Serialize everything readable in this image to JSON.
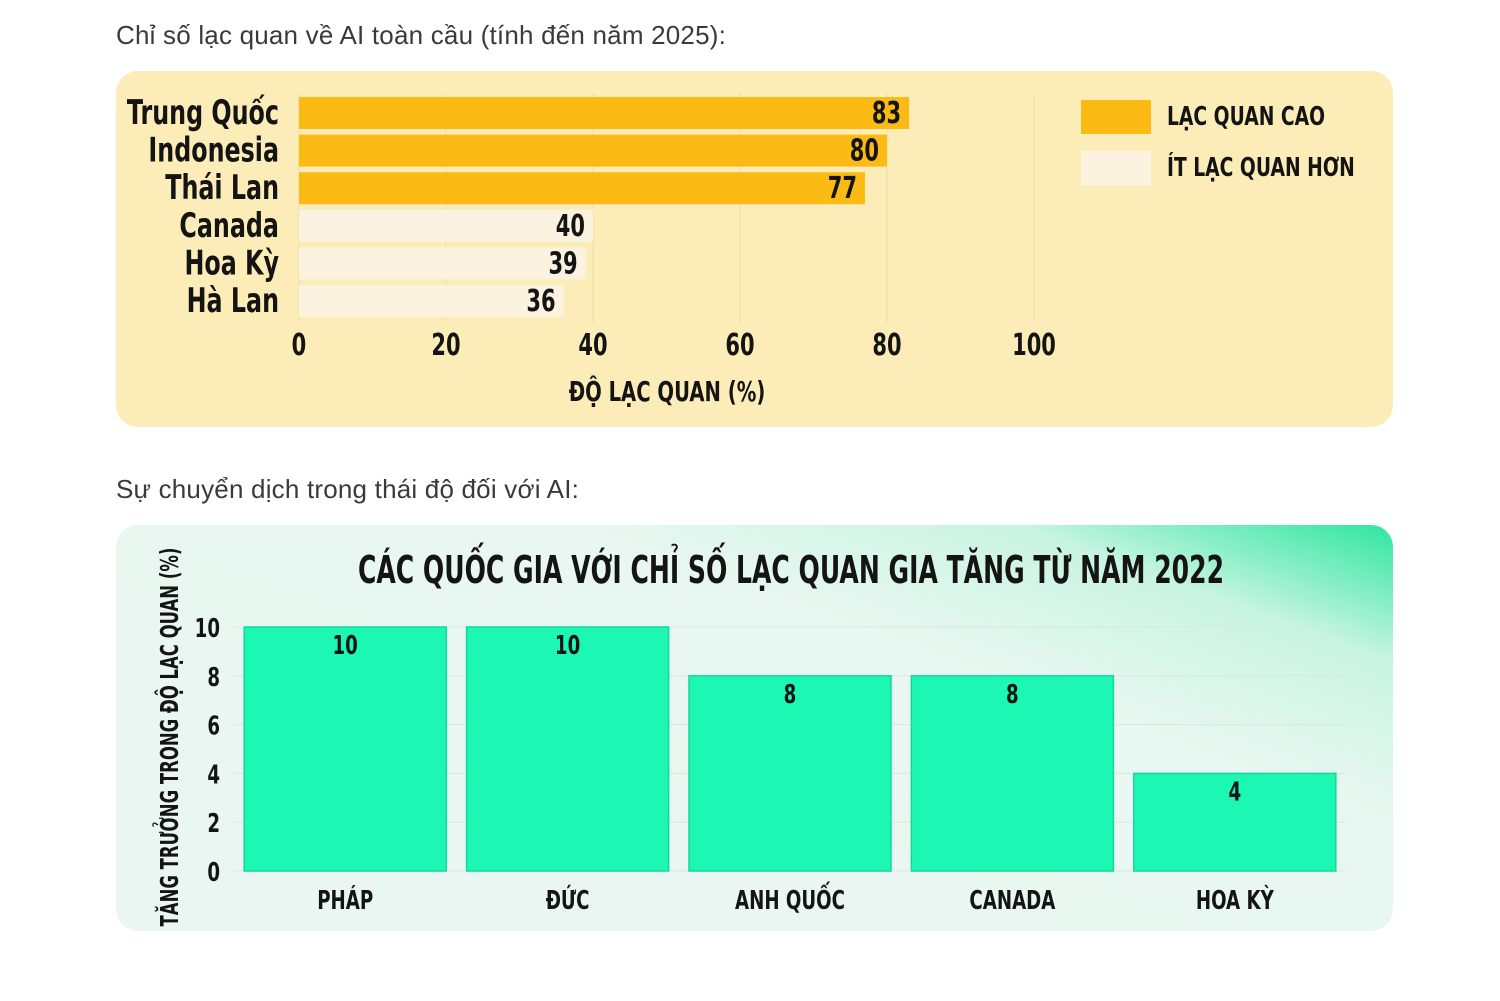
{
  "sections": {
    "optimism_heading": "Chỉ số lạc quan về AI toàn cầu (tính đến năm 2025):",
    "shift_heading": "Sự chuyển dịch trong thái độ đối với AI:"
  },
  "legend": {
    "high": "LẠC QUAN CAO",
    "low": "ÍT LẠC QUAN HƠN"
  },
  "colors": {
    "high": "#fcbb14",
    "low": "#fbf3e0",
    "green_bar": "#1cf7b4"
  },
  "chart_data": [
    {
      "type": "bar",
      "orientation": "horizontal",
      "categories": [
        "Trung Quốc",
        "Indonesia",
        "Thái Lan",
        "Canada",
        "Hoa Kỳ",
        "Hà Lan"
      ],
      "values": [
        83,
        80,
        77,
        40,
        39,
        36
      ],
      "groups": [
        "high",
        "high",
        "high",
        "low",
        "low",
        "low"
      ],
      "xlabel": "ĐỘ LẠC QUAN (%)",
      "xlim": [
        0,
        100
      ],
      "xticks": [
        "0",
        "20",
        "40",
        "60",
        "80",
        "100"
      ],
      "grid": "vertical",
      "legend_position": "right"
    },
    {
      "type": "bar",
      "title": "CÁC QUỐC GIA VỚI CHỈ SỐ LẠC QUAN GIA TĂNG TỪ NĂM 2022",
      "categories": [
        "PHÁP",
        "ĐỨC",
        "ANH QUỐC",
        "CANADA",
        "HOA KỲ"
      ],
      "values": [
        10,
        10,
        8,
        8,
        4
      ],
      "ylabel": "TĂNG TRƯỞNG TRONG ĐỘ LẠC QUAN (%)",
      "ylim": [
        0,
        10
      ],
      "yticks": [
        "0",
        "2",
        "4",
        "6",
        "8",
        "10"
      ],
      "grid": "horizontal"
    }
  ]
}
